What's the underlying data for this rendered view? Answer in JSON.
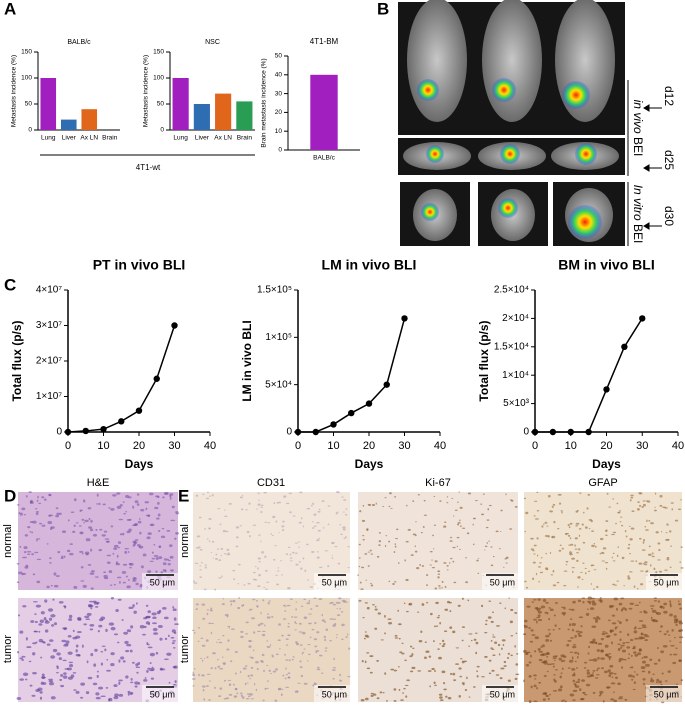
{
  "panels": {
    "a": "A",
    "b": "B",
    "c": "C",
    "d": "D",
    "e": "E"
  },
  "panel_a": {
    "group_label": "4T1-wt"
  },
  "panel_b": {
    "d12": "d12",
    "d25": "d25",
    "d30": "d30",
    "in_vivo": [
      "in vivo",
      "BEI"
    ],
    "in_vitro": [
      "In vitro",
      "BEI"
    ]
  },
  "histology": {
    "d_title": "H&E",
    "e_titles": [
      "CD31",
      "Ki-67",
      "GFAP"
    ],
    "rows": [
      "normal",
      "tumor"
    ],
    "scale_bar": "50 μm"
  },
  "chart_data": [
    {
      "type": "bar",
      "title": "BALB/c",
      "ylabel": "Metastasis incidence (%)",
      "categories": [
        "Lung",
        "Liver",
        "Ax LN",
        "Brain"
      ],
      "values": [
        100,
        20,
        40,
        0
      ],
      "colors": [
        "#a21fbf",
        "#2f6db3",
        "#e0661c",
        "#2a9d55"
      ],
      "ylim": [
        0,
        150
      ],
      "yticks": [
        0,
        50,
        100,
        150
      ]
    },
    {
      "type": "bar",
      "title": "NSC",
      "ylabel": "Metastasis incidence (%)",
      "categories": [
        "Lung",
        "Liver",
        "Ax LN",
        "Brain"
      ],
      "values": [
        100,
        50,
        70,
        55
      ],
      "colors": [
        "#a21fbf",
        "#2f6db3",
        "#e0661c",
        "#2a9d55"
      ],
      "ylim": [
        0,
        150
      ],
      "yticks": [
        0,
        50,
        100,
        150
      ]
    },
    {
      "type": "bar",
      "title": "4T1-BM",
      "ylabel": "Brain metastasis incidence (%)",
      "categories": [
        "BALB/c"
      ],
      "values": [
        40
      ],
      "colors": [
        "#a21fbf"
      ],
      "ylim": [
        0,
        50
      ],
      "yticks": [
        0,
        10,
        20,
        30,
        40,
        50
      ]
    },
    {
      "type": "line",
      "title": "PT in vivo BLI",
      "xlabel": "Days",
      "ylabel": "Total flux (p/s)",
      "color": "#000000",
      "x": [
        0,
        5,
        10,
        15,
        20,
        25,
        30
      ],
      "values": [
        0,
        300000,
        800000,
        3000000,
        6000000,
        15000000,
        30000000
      ],
      "xlim": [
        0,
        40
      ],
      "xticks": [
        0,
        10,
        20,
        30,
        40
      ],
      "ylim": [
        0,
        40000000
      ],
      "yticks": [
        0,
        {
          "value": 10000000,
          "label": "1×10⁷"
        },
        {
          "value": 20000000,
          "label": "2×10⁷"
        },
        {
          "value": 30000000,
          "label": "3×10⁷"
        },
        {
          "value": 40000000,
          "label": "4×10⁷"
        }
      ]
    },
    {
      "type": "line",
      "title": "LM in vivo BLI",
      "xlabel": "Days",
      "ylabel": "LM in vivo BLI",
      "color": "#000000",
      "x": [
        0,
        5,
        10,
        15,
        20,
        25,
        30
      ],
      "values": [
        0,
        0,
        8000,
        20000,
        30000,
        50000,
        120000
      ],
      "xlim": [
        0,
        40
      ],
      "xticks": [
        0,
        10,
        20,
        30,
        40
      ],
      "ylim": [
        0,
        150000
      ],
      "yticks": [
        0,
        {
          "value": 50000,
          "label": "5×10⁴"
        },
        {
          "value": 100000,
          "label": "1×10⁵"
        },
        {
          "value": 150000,
          "label": "1.5×10⁵"
        }
      ]
    },
    {
      "type": "line",
      "title": "BM in vivo BLI",
      "xlabel": "Days",
      "ylabel": "Total flux (p/s)",
      "color": "#000000",
      "x": [
        0,
        5,
        10,
        15,
        20,
        25,
        30
      ],
      "values": [
        0,
        0,
        0,
        0,
        7500,
        15000,
        20000
      ],
      "xlim": [
        0,
        40
      ],
      "xticks": [
        0,
        10,
        20,
        30,
        40
      ],
      "ylim": [
        0,
        25000
      ],
      "yticks": [
        0,
        {
          "value": 5000,
          "label": "5×10³"
        },
        {
          "value": 10000,
          "label": "1×10⁴"
        },
        {
          "value": 15000,
          "label": "1.5×10⁴"
        },
        {
          "value": 20000,
          "label": "2×10⁴"
        },
        {
          "value": 25000,
          "label": "2.5×10⁴"
        }
      ]
    }
  ]
}
